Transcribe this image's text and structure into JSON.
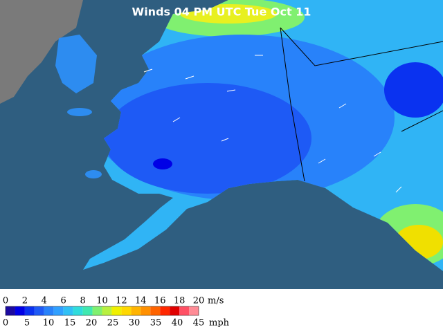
{
  "header": {
    "title": "Winds 04 PM UTC Tue Oct 11"
  },
  "legend": {
    "colors": [
      "#1c0aa0",
      "#0000e6",
      "#0a32f0",
      "#1e5af5",
      "#2882fa",
      "#30a0ff",
      "#30c0f5",
      "#30dcdc",
      "#40e8b0",
      "#80f070",
      "#b8f040",
      "#f0f000",
      "#ffd800",
      "#ffb400",
      "#ff9000",
      "#ff6400",
      "#ff2800",
      "#e00000",
      "#ff5064",
      "#ff8c96"
    ],
    "ms_labels": [
      0,
      2,
      4,
      6,
      8,
      10,
      12,
      14,
      16,
      18,
      20
    ],
    "ms_unit": "m/s",
    "mph_labels": [
      0,
      5,
      10,
      15,
      20,
      25,
      30,
      35,
      40,
      45
    ],
    "mph_unit": "mph"
  }
}
